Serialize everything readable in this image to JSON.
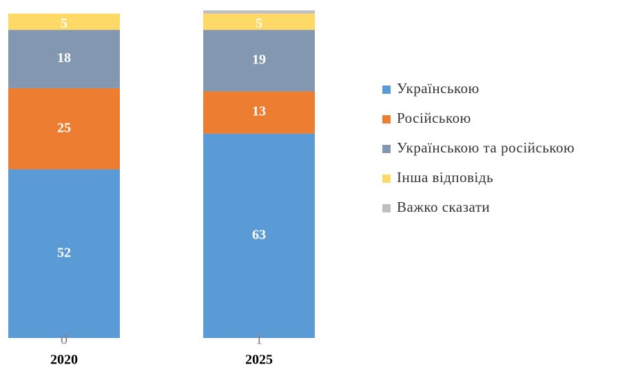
{
  "chart_data": {
    "type": "stacked-bar",
    "categories": [
      "2020",
      "2025"
    ],
    "series": [
      {
        "name": "Українською",
        "color": "#5b9bd5",
        "values": [
          52,
          63
        ]
      },
      {
        "name": "Російською",
        "color": "#ed7d31",
        "values": [
          25,
          13
        ]
      },
      {
        "name": "Українською та російською",
        "color": "#8497b0",
        "values": [
          18,
          19
        ]
      },
      {
        "name": "Інша відповідь",
        "color": "#ffd966",
        "values": [
          5,
          5
        ]
      },
      {
        "name": "Важко сказати",
        "color": "#bfbfbf",
        "values": [
          0,
          1
        ]
      }
    ],
    "ylim": [
      0,
      101
    ],
    "legend": "right"
  }
}
